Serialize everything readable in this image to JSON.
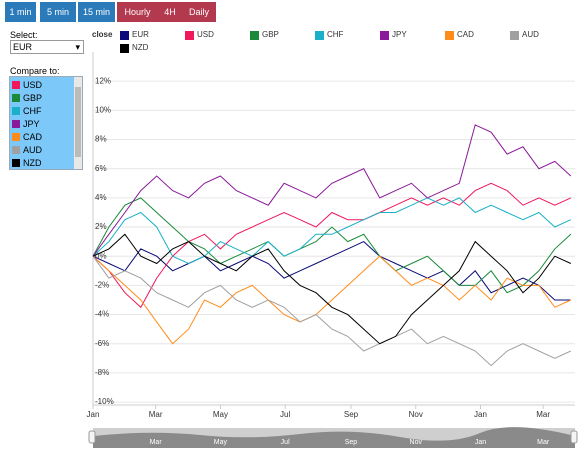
{
  "buttons": [
    "1 min",
    "5 min",
    "15 min",
    "Hourly",
    "4H",
    "Daily"
  ],
  "select": {
    "label": "Select:",
    "value": "EUR"
  },
  "compare": {
    "label": "Compare to:",
    "items": [
      "USD",
      "GBP",
      "CHF",
      "JPY",
      "CAD",
      "AUD",
      "NZD"
    ]
  },
  "chart_data": {
    "type": "line",
    "legend_title": "close",
    "x": [
      0,
      15,
      30,
      45,
      60,
      75,
      90,
      105,
      120,
      135,
      150,
      165,
      180,
      195,
      210,
      225,
      240,
      255,
      270,
      285,
      300,
      315,
      330,
      345,
      360,
      375,
      390,
      405,
      420,
      435,
      450
    ],
    "xlim": [
      0,
      454
    ],
    "xticks": [
      {
        "value": 0,
        "label": "Jan"
      },
      {
        "value": 59,
        "label": "Mar"
      },
      {
        "value": 120,
        "label": "May"
      },
      {
        "value": 181,
        "label": "Jul"
      },
      {
        "value": 243,
        "label": "Sep"
      },
      {
        "value": 304,
        "label": "Nov"
      },
      {
        "value": 365,
        "label": "Jan"
      },
      {
        "value": 424,
        "label": "Mar"
      }
    ],
    "ylim": [
      -10.2,
      14
    ],
    "yticks": [
      {
        "value": -10,
        "label": "-10%"
      },
      {
        "value": -8,
        "label": "-8%"
      },
      {
        "value": -6,
        "label": "-6%"
      },
      {
        "value": -4,
        "label": "-4%"
      },
      {
        "value": -2,
        "label": "-2%"
      },
      {
        "value": 0,
        "label": "0%"
      },
      {
        "value": 2,
        "label": "2%"
      },
      {
        "value": 4,
        "label": "4%"
      },
      {
        "value": 6,
        "label": "6%"
      },
      {
        "value": 8,
        "label": "8%"
      },
      {
        "value": 10,
        "label": "10%"
      },
      {
        "value": 12,
        "label": "12%"
      }
    ],
    "grid": true,
    "series": [
      {
        "name": "EUR",
        "color": "#0a0a7a",
        "values": [
          0,
          -0.5,
          -1,
          0.5,
          0,
          -1,
          -0.5,
          0,
          -1,
          -0.5,
          0,
          -0.5,
          -1.5,
          -1,
          -0.5,
          0,
          0.5,
          1,
          0,
          -0.5,
          -1,
          -1.5,
          -1,
          -2,
          -1,
          -2.5,
          -2,
          -1.5,
          -2,
          -3,
          -3
        ]
      },
      {
        "name": "USD",
        "color": "#f0185a",
        "values": [
          0,
          -1,
          -2.5,
          -3.5,
          -1.5,
          0,
          1,
          1.5,
          0.5,
          1.5,
          2,
          2.5,
          3,
          2.5,
          2,
          3,
          2.5,
          2.5,
          3,
          3.5,
          4,
          3.5,
          4,
          3.5,
          4.5,
          5,
          4.5,
          3.5,
          4,
          3.5,
          4
        ]
      },
      {
        "name": "GBP",
        "color": "#1a8a3a",
        "values": [
          0,
          2,
          3.5,
          4,
          3,
          2,
          1,
          0.5,
          -0.5,
          0,
          0.5,
          1,
          0,
          0.5,
          1,
          2,
          1,
          1.5,
          0,
          -1,
          -0.5,
          0,
          -1,
          -2,
          -2,
          -1,
          -2.5,
          -2,
          -1,
          0.5,
          1.5
        ]
      },
      {
        "name": "CHF",
        "color": "#1ab0c8",
        "values": [
          0,
          1,
          2.5,
          3,
          2,
          0,
          -0.5,
          0,
          1,
          0.5,
          0,
          1,
          0,
          0.5,
          1.5,
          1.5,
          2,
          2.5,
          3,
          3,
          3.5,
          4,
          3.5,
          4,
          3,
          3.5,
          3,
          2.5,
          3,
          2,
          2.5
        ]
      },
      {
        "name": "JPY",
        "color": "#8b1a9a",
        "values": [
          0,
          1.5,
          3,
          4.5,
          5.5,
          4.5,
          4,
          5,
          5.5,
          4.5,
          4,
          3.5,
          5,
          4.5,
          4,
          5,
          5.5,
          6,
          4,
          4.5,
          5,
          4,
          4.5,
          5,
          9,
          8.5,
          7,
          7.5,
          6,
          6.5,
          5.5
        ]
      },
      {
        "name": "CAD",
        "color": "#ff8c1a",
        "values": [
          0,
          -1,
          -2,
          -3,
          -4.5,
          -6,
          -5,
          -3,
          -3.5,
          -2.5,
          -2,
          -3,
          -4,
          -4.5,
          -4,
          -3,
          -2,
          -1,
          0,
          -1,
          -2,
          -1.5,
          -2,
          -3,
          -2,
          -3,
          -1.5,
          -2,
          -2,
          -3.5,
          -3
        ]
      },
      {
        "name": "AUD",
        "color": "#a0a0a0",
        "values": [
          0,
          -1.5,
          -1,
          -1.5,
          -2.5,
          -3,
          -3.5,
          -2.5,
          -2,
          -3,
          -3.5,
          -3,
          -3.5,
          -4.5,
          -4,
          -5,
          -5.5,
          -6.5,
          -6,
          -5.5,
          -5,
          -6,
          -5.5,
          -6,
          -6.5,
          -7.5,
          -6.5,
          -6,
          -6.5,
          -7,
          -6.5
        ]
      },
      {
        "name": "NZD",
        "color": "#000000",
        "values": [
          0,
          0.5,
          1.5,
          0,
          -0.5,
          0.5,
          1,
          0,
          -0.5,
          -1,
          0,
          0.5,
          -1,
          -2,
          -2.5,
          -3.5,
          -4,
          -5,
          -6,
          -5.5,
          -4,
          -3,
          -2,
          -1,
          1,
          0,
          -1,
          -2.5,
          -1.5,
          0,
          -0.5
        ]
      }
    ]
  }
}
